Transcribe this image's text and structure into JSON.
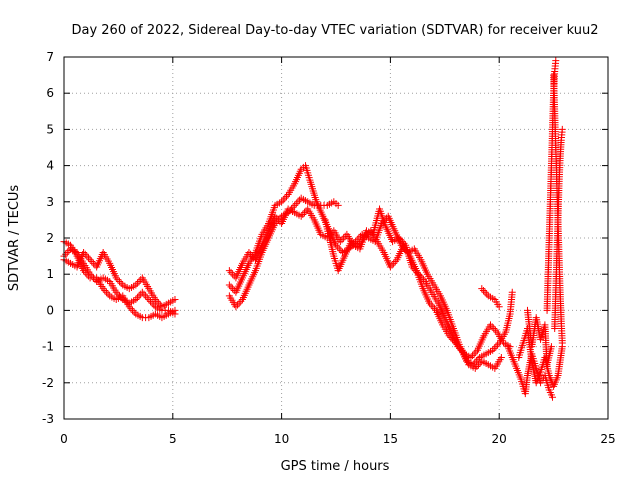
{
  "chart_data": {
    "type": "scatter",
    "title": "Day 260 of 2022, Sidereal Day-to-day VTEC variation (SDTVAR) for receiver kuu2",
    "xlabel": "GPS time / hours",
    "ylabel": "SDTVAR / TECUs",
    "xlim": [
      0,
      25
    ],
    "ylim": [
      -3,
      7
    ],
    "xticks": [
      0,
      5,
      10,
      15,
      20,
      25
    ],
    "yticks": [
      -3,
      -2,
      -1,
      0,
      1,
      2,
      3,
      4,
      5,
      6,
      7
    ],
    "grid": true,
    "marker": "+",
    "series_color": "#ff0000",
    "series": [
      {
        "name": "SDTVAR",
        "segments": [
          [
            [
              0.0,
              1.5
            ],
            [
              0.3,
              1.7
            ],
            [
              0.6,
              1.6
            ],
            [
              0.9,
              1.3
            ],
            [
              1.2,
              1.0
            ],
            [
              1.5,
              0.8
            ],
            [
              1.8,
              0.9
            ],
            [
              2.1,
              0.8
            ],
            [
              2.4,
              0.5
            ],
            [
              2.7,
              0.3
            ],
            [
              3.0,
              0.2
            ],
            [
              3.3,
              0.3
            ],
            [
              3.6,
              0.5
            ],
            [
              3.9,
              0.3
            ],
            [
              4.2,
              0.1
            ],
            [
              4.5,
              0.0
            ],
            [
              4.8,
              0.0
            ],
            [
              5.1,
              -0.1
            ]
          ],
          [
            [
              0.0,
              1.9
            ],
            [
              0.3,
              1.8
            ],
            [
              0.6,
              1.5
            ],
            [
              0.9,
              1.1
            ],
            [
              1.2,
              0.9
            ],
            [
              1.5,
              0.9
            ],
            [
              1.8,
              0.6
            ],
            [
              2.1,
              0.4
            ],
            [
              2.4,
              0.3
            ],
            [
              2.7,
              0.4
            ],
            [
              3.0,
              0.1
            ],
            [
              3.3,
              -0.1
            ],
            [
              3.6,
              -0.2
            ],
            [
              3.9,
              -0.2
            ],
            [
              4.2,
              -0.1
            ],
            [
              4.5,
              -0.2
            ],
            [
              4.8,
              -0.1
            ],
            [
              5.1,
              0.0
            ]
          ],
          [
            [
              0.0,
              1.4
            ],
            [
              0.3,
              1.3
            ],
            [
              0.6,
              1.2
            ],
            [
              0.9,
              1.6
            ],
            [
              1.2,
              1.4
            ],
            [
              1.5,
              1.2
            ],
            [
              1.8,
              1.6
            ],
            [
              2.1,
              1.3
            ],
            [
              2.4,
              0.9
            ],
            [
              2.7,
              0.7
            ],
            [
              3.0,
              0.6
            ],
            [
              3.3,
              0.7
            ],
            [
              3.6,
              0.9
            ],
            [
              3.9,
              0.6
            ],
            [
              4.2,
              0.3
            ],
            [
              4.5,
              0.1
            ],
            [
              4.8,
              0.2
            ],
            [
              5.1,
              0.3
            ]
          ],
          [
            [
              7.6,
              0.4
            ],
            [
              7.9,
              0.1
            ],
            [
              8.2,
              0.3
            ],
            [
              8.5,
              0.7
            ],
            [
              8.8,
              1.1
            ],
            [
              9.1,
              1.6
            ],
            [
              9.4,
              2.0
            ],
            [
              9.7,
              2.4
            ],
            [
              10.0,
              2.6
            ],
            [
              10.3,
              2.7
            ],
            [
              10.6,
              2.9
            ],
            [
              10.9,
              3.1
            ],
            [
              11.2,
              3.0
            ],
            [
              11.5,
              2.9
            ],
            [
              11.8,
              2.9
            ],
            [
              12.1,
              2.9
            ],
            [
              12.4,
              3.0
            ],
            [
              12.6,
              2.9
            ]
          ],
          [
            [
              7.6,
              0.7
            ],
            [
              7.9,
              0.5
            ],
            [
              8.2,
              0.9
            ],
            [
              8.5,
              1.3
            ],
            [
              8.8,
              1.6
            ],
            [
              9.1,
              2.1
            ],
            [
              9.4,
              2.4
            ],
            [
              9.7,
              2.9
            ],
            [
              10.0,
              3.0
            ],
            [
              10.3,
              3.2
            ],
            [
              10.6,
              3.5
            ],
            [
              10.9,
              3.9
            ],
            [
              11.1,
              4.0
            ],
            [
              11.3,
              3.6
            ],
            [
              11.6,
              3.0
            ],
            [
              11.9,
              2.6
            ],
            [
              12.2,
              2.2
            ],
            [
              12.5,
              1.8
            ],
            [
              12.8,
              1.6
            ],
            [
              13.1,
              1.7
            ],
            [
              13.4,
              1.9
            ],
            [
              13.7,
              2.1
            ],
            [
              14.0,
              2.0
            ],
            [
              14.3,
              1.9
            ],
            [
              14.6,
              2.4
            ],
            [
              14.9,
              2.6
            ],
            [
              15.2,
              2.2
            ],
            [
              15.5,
              1.8
            ],
            [
              15.8,
              1.6
            ],
            [
              16.1,
              1.7
            ],
            [
              16.4,
              1.4
            ],
            [
              16.7,
              1.0
            ],
            [
              17.0,
              0.7
            ],
            [
              17.3,
              0.4
            ],
            [
              17.6,
              0.0
            ],
            [
              17.9,
              -0.5
            ],
            [
              18.2,
              -1.0
            ],
            [
              18.5,
              -1.4
            ],
            [
              18.8,
              -1.5
            ],
            [
              19.1,
              -1.3
            ],
            [
              19.4,
              -1.2
            ],
            [
              19.7,
              -1.1
            ],
            [
              20.0,
              -0.9
            ],
            [
              20.3,
              -0.6
            ],
            [
              20.5,
              -0.1
            ],
            [
              20.6,
              0.5
            ]
          ],
          [
            [
              7.6,
              1.1
            ],
            [
              7.9,
              0.9
            ],
            [
              8.2,
              1.3
            ],
            [
              8.5,
              1.6
            ],
            [
              8.8,
              1.4
            ],
            [
              9.1,
              1.8
            ],
            [
              9.4,
              2.2
            ],
            [
              9.7,
              2.6
            ],
            [
              10.0,
              2.4
            ],
            [
              10.3,
              2.8
            ],
            [
              10.6,
              2.7
            ],
            [
              10.9,
              2.6
            ],
            [
              11.2,
              2.8
            ],
            [
              11.5,
              2.5
            ],
            [
              11.8,
              2.1
            ],
            [
              12.1,
              2.0
            ],
            [
              12.4,
              2.2
            ],
            [
              12.7,
              1.9
            ],
            [
              13.0,
              2.1
            ],
            [
              13.3,
              1.8
            ],
            [
              13.6,
              1.7
            ],
            [
              13.9,
              2.2
            ],
            [
              14.2,
              2.1
            ],
            [
              14.5,
              2.8
            ],
            [
              14.8,
              2.3
            ],
            [
              15.1,
              1.9
            ],
            [
              15.4,
              2.0
            ],
            [
              15.7,
              1.8
            ],
            [
              16.0,
              1.2
            ],
            [
              16.3,
              1.0
            ],
            [
              16.6,
              0.8
            ],
            [
              16.9,
              0.5
            ],
            [
              17.2,
              0.2
            ],
            [
              17.5,
              -0.2
            ],
            [
              17.8,
              -0.6
            ],
            [
              18.1,
              -1.0
            ],
            [
              18.4,
              -1.2
            ],
            [
              18.7,
              -1.3
            ],
            [
              19.0,
              -1.1
            ],
            [
              19.3,
              -0.7
            ],
            [
              19.6,
              -0.4
            ],
            [
              19.9,
              -0.6
            ],
            [
              20.2,
              -0.9
            ],
            [
              20.5,
              -1.0
            ]
          ],
          [
            [
              12.0,
              2.5
            ],
            [
              12.2,
              2.0
            ],
            [
              12.4,
              1.5
            ],
            [
              12.6,
              1.1
            ],
            [
              12.9,
              1.5
            ],
            [
              13.2,
              1.9
            ],
            [
              13.5,
              1.8
            ],
            [
              13.8,
              2.0
            ],
            [
              14.1,
              2.2
            ],
            [
              14.4,
              1.9
            ],
            [
              14.7,
              1.6
            ],
            [
              15.0,
              1.2
            ],
            [
              15.3,
              1.4
            ],
            [
              15.6,
              1.8
            ],
            [
              15.9,
              1.5
            ],
            [
              16.2,
              1.1
            ],
            [
              16.5,
              0.6
            ],
            [
              16.8,
              0.2
            ],
            [
              17.1,
              0.0
            ],
            [
              17.4,
              -0.4
            ],
            [
              17.7,
              -0.7
            ],
            [
              18.0,
              -0.9
            ],
            [
              18.3,
              -1.1
            ],
            [
              18.6,
              -1.5
            ],
            [
              18.9,
              -1.6
            ],
            [
              19.2,
              -1.4
            ],
            [
              19.5,
              -1.5
            ],
            [
              19.8,
              -1.6
            ],
            [
              20.1,
              -1.3
            ]
          ],
          [
            [
              19.2,
              0.6
            ],
            [
              19.5,
              0.4
            ],
            [
              19.8,
              0.3
            ],
            [
              20.0,
              0.1
            ]
          ],
          [
            [
              20.4,
              -1.0
            ],
            [
              20.6,
              -1.3
            ],
            [
              20.8,
              -1.6
            ],
            [
              21.0,
              -1.9
            ],
            [
              21.2,
              -2.3
            ],
            [
              21.3,
              -1.8
            ],
            [
              21.5,
              -1.2
            ],
            [
              21.7,
              -1.6
            ],
            [
              21.9,
              -2.0
            ],
            [
              22.1,
              -1.8
            ],
            [
              22.3,
              -2.2
            ],
            [
              22.45,
              -2.4
            ]
          ],
          [
            [
              20.9,
              -1.3
            ],
            [
              21.1,
              -0.9
            ],
            [
              21.3,
              -0.5
            ],
            [
              21.5,
              -1.4
            ],
            [
              21.7,
              -2.0
            ],
            [
              21.9,
              -1.7
            ],
            [
              22.1,
              -1.3
            ],
            [
              22.3,
              -1.8
            ],
            [
              22.5,
              -2.1
            ],
            [
              22.7,
              -1.8
            ],
            [
              22.9,
              -1.0
            ]
          ],
          [
            [
              21.3,
              0.0
            ],
            [
              21.5,
              -1.0
            ],
            [
              21.7,
              -0.2
            ],
            [
              21.9,
              -0.8
            ],
            [
              22.1,
              -0.4
            ],
            [
              22.2,
              -1.5
            ],
            [
              22.4,
              -1.0
            ]
          ],
          [
            [
              22.2,
              0.0
            ],
            [
              22.25,
              1.0
            ],
            [
              22.3,
              2.0
            ],
            [
              22.35,
              3.0
            ],
            [
              22.4,
              4.0
            ],
            [
              22.45,
              5.0
            ],
            [
              22.5,
              6.0
            ],
            [
              22.55,
              6.6
            ],
            [
              22.6,
              6.9
            ]
          ],
          [
            [
              22.5,
              6.5
            ],
            [
              22.55,
              5.5
            ],
            [
              22.6,
              4.5
            ],
            [
              22.65,
              3.5
            ],
            [
              22.7,
              2.5
            ],
            [
              22.75,
              1.5
            ],
            [
              22.8,
              0.5
            ],
            [
              22.85,
              -0.3
            ],
            [
              22.9,
              -0.9
            ]
          ],
          [
            [
              22.55,
              -0.5
            ],
            [
              22.6,
              0.5
            ],
            [
              22.65,
              1.5
            ],
            [
              22.7,
              2.5
            ],
            [
              22.75,
              3.5
            ],
            [
              22.8,
              4.2
            ],
            [
              22.85,
              4.7
            ],
            [
              22.9,
              5.0
            ]
          ]
        ]
      }
    ]
  }
}
